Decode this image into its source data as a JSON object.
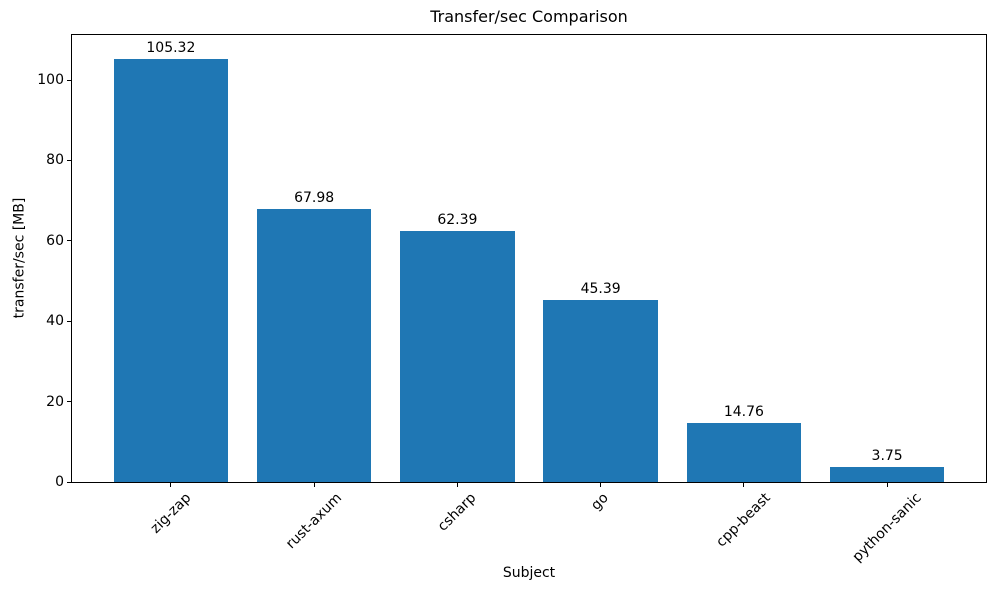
{
  "chart_data": {
    "type": "bar",
    "title": "Transfer/sec Comparison",
    "xlabel": "Subject",
    "ylabel": "transfer/sec [MB]",
    "categories": [
      "zig-zap",
      "rust-axum",
      "csharp",
      "go",
      "cpp-beast",
      "python-sanic"
    ],
    "values": [
      105.32,
      67.98,
      62.39,
      45.39,
      14.76,
      3.75
    ],
    "bar_labels": [
      "105.32",
      "67.98",
      "62.39",
      "45.39",
      "14.76",
      "3.75"
    ],
    "yticks": [
      0,
      20,
      40,
      60,
      80,
      100
    ],
    "ylim": [
      0,
      111.2
    ],
    "xtick_rotation_deg": 45,
    "bar_color": "#1f77b4",
    "text_color": "#000000",
    "grid": false,
    "legend_position": "none"
  }
}
